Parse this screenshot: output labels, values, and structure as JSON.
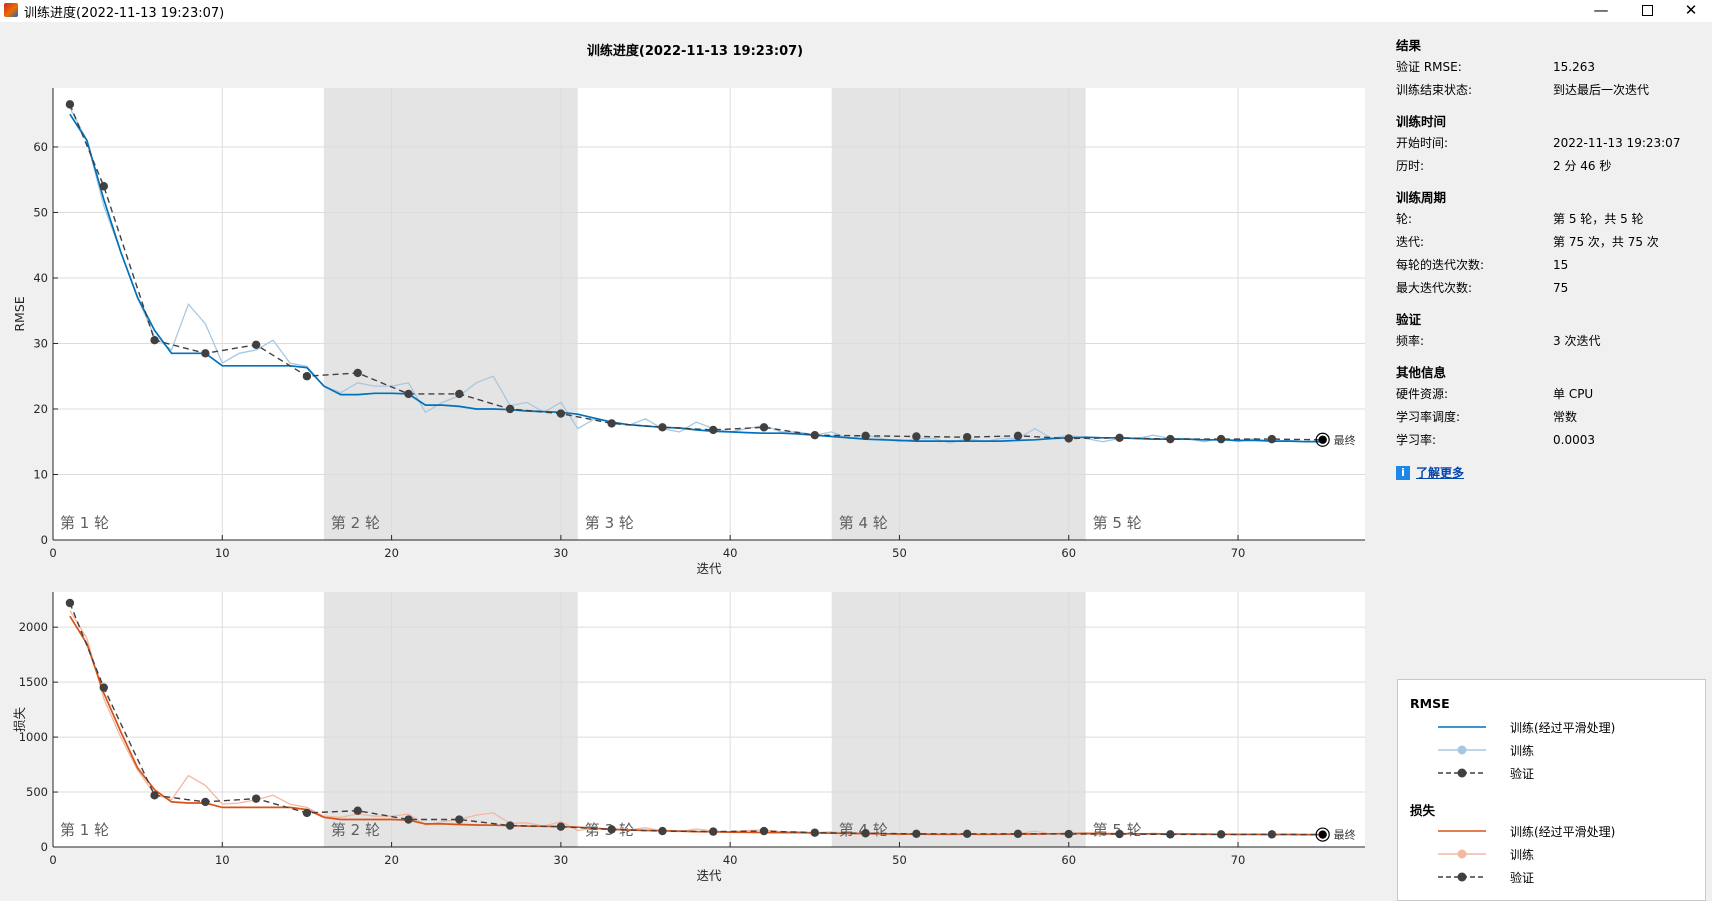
{
  "window": {
    "title": "训练进度(2022-11-13 19:23:07)",
    "minimize": "—",
    "close": "✕"
  },
  "plot_title": "训练进度(2022-11-13 19:23:07)",
  "info": {
    "sections": [
      {
        "title": "结果",
        "rows": [
          {
            "k": "验证 RMSE:",
            "v": "15.263"
          },
          {
            "k": "训练结束状态:",
            "v": "到达最后一次迭代"
          }
        ]
      },
      {
        "title": "训练时间",
        "rows": [
          {
            "k": "开始时间:",
            "v": "2022-11-13 19:23:07"
          },
          {
            "k": "历时:",
            "v": "2 分 46 秒"
          }
        ]
      },
      {
        "title": "训练周期",
        "rows": [
          {
            "k": "轮:",
            "v": "第 5 轮，共 5 轮"
          },
          {
            "k": "迭代:",
            "v": "第 75 次，共 75 次"
          },
          {
            "k": "每轮的迭代次数:",
            "v": "15"
          },
          {
            "k": "最大迭代次数:",
            "v": "75"
          }
        ]
      },
      {
        "title": "验证",
        "rows": [
          {
            "k": "频率:",
            "v": "3 次迭代"
          }
        ]
      },
      {
        "title": "其他信息",
        "rows": [
          {
            "k": "硬件资源:",
            "v": "单 CPU"
          },
          {
            "k": "学习率调度:",
            "v": "常数"
          },
          {
            "k": "学习率:",
            "v": "0.0003"
          }
        ]
      }
    ],
    "learn_more": "了解更多"
  },
  "legend": {
    "rmse_title": "RMSE",
    "loss_title": "损失",
    "smoothed": "训练(经过平滑处理)",
    "training": "训练",
    "validation": "验证"
  },
  "colors": {
    "rmse_smoothed": "#0072bd",
    "rmse_raw": "#a8c8e0",
    "loss_smoothed": "#d95319",
    "loss_raw": "#f2b8a0",
    "validation": "#404040",
    "epoch_shade": "#e4e4e4",
    "grid": "#dcdcdc"
  },
  "chart_data": [
    {
      "type": "line",
      "title": "训练进度(2022-11-13 19:23:07)",
      "xlabel": "迭代",
      "ylabel": "RMSE",
      "xlim": [
        0,
        77.5
      ],
      "ylim": [
        0,
        69
      ],
      "xticks": [
        0,
        10,
        20,
        30,
        40,
        50,
        60,
        70
      ],
      "yticks": [
        0,
        10,
        20,
        30,
        40,
        50,
        60
      ],
      "epochs": [
        {
          "label": "第 1 轮",
          "start": 0,
          "end": 16,
          "shaded": false
        },
        {
          "label": "第 2 轮",
          "start": 16,
          "end": 31,
          "shaded": true
        },
        {
          "label": "第 3 轮",
          "start": 31,
          "end": 46,
          "shaded": false
        },
        {
          "label": "第 4 轮",
          "start": 46,
          "end": 61,
          "shaded": true
        },
        {
          "label": "第 5 轮",
          "start": 61,
          "end": 77.5,
          "shaded": false
        }
      ],
      "final_label": "最终",
      "series": [
        {
          "name": "训练(经过平滑处理)",
          "style": "smoothed",
          "x": [
            1,
            2,
            3,
            4,
            5,
            6,
            7,
            8,
            9,
            10,
            11,
            12,
            13,
            14,
            15,
            16,
            17,
            18,
            19,
            20,
            21,
            22,
            23,
            24,
            25,
            26,
            27,
            28,
            29,
            30,
            31,
            32,
            33,
            34,
            35,
            36,
            37,
            38,
            39,
            40,
            41,
            42,
            43,
            44,
            45,
            46,
            47,
            48,
            49,
            50,
            51,
            52,
            53,
            54,
            55,
            56,
            57,
            58,
            59,
            60,
            61,
            62,
            63,
            64,
            65,
            66,
            67,
            68,
            69,
            70,
            71,
            72,
            73,
            74,
            75
          ],
          "y": [
            65,
            61,
            52,
            44,
            37,
            32,
            28.5,
            28.5,
            28.5,
            26.6,
            26.6,
            26.6,
            26.6,
            26.6,
            26.3,
            23.5,
            22.2,
            22.2,
            22.4,
            22.4,
            22.3,
            20.6,
            20.6,
            20.4,
            20.0,
            20.0,
            19.9,
            19.7,
            19.6,
            19.5,
            19.2,
            18.6,
            18.0,
            17.6,
            17.4,
            17.2,
            17.1,
            16.8,
            16.6,
            16.5,
            16.4,
            16.3,
            16.3,
            16.2,
            16.0,
            15.8,
            15.6,
            15.4,
            15.3,
            15.2,
            15.1,
            15.1,
            15.1,
            15.1,
            15.1,
            15.1,
            15.2,
            15.3,
            15.5,
            15.6,
            15.7,
            15.6,
            15.6,
            15.5,
            15.4,
            15.4,
            15.4,
            15.3,
            15.3,
            15.2,
            15.2,
            15.1,
            15.1,
            15.0,
            15.0
          ]
        },
        {
          "name": "训练",
          "style": "raw",
          "x": [
            1,
            2,
            3,
            4,
            5,
            6,
            7,
            8,
            9,
            10,
            11,
            12,
            13,
            14,
            15,
            16,
            17,
            18,
            19,
            20,
            21,
            22,
            23,
            24,
            25,
            26,
            27,
            28,
            29,
            30,
            31,
            32,
            33,
            34,
            35,
            36,
            37,
            38,
            39,
            40,
            41,
            42,
            43,
            44,
            45,
            46,
            47,
            48,
            49,
            50,
            51,
            52,
            53,
            54,
            55,
            56,
            57,
            58,
            59,
            60,
            61,
            62,
            63,
            64,
            65,
            66,
            67,
            68,
            69,
            70,
            71,
            72,
            73,
            74,
            75
          ],
          "y": [
            66,
            61,
            51,
            44,
            37,
            31,
            29,
            36,
            33,
            27,
            28.5,
            29,
            30.5,
            27,
            26.5,
            23.5,
            22.5,
            24,
            23.5,
            23.5,
            24,
            19.5,
            21,
            22,
            24,
            25,
            20.5,
            21,
            19.5,
            21,
            17,
            18.5,
            18,
            17.5,
            18.5,
            17,
            16.5,
            18,
            17,
            16.5,
            17,
            17.5,
            16.5,
            16.5,
            16,
            16.5,
            15.5,
            16,
            15.5,
            15,
            15.5,
            15.5,
            14.8,
            15.5,
            15,
            15.5,
            15.5,
            17,
            15.5,
            16,
            15.5,
            15,
            15.5,
            15.5,
            16,
            15.5,
            15.5,
            15,
            15.5,
            15,
            15.5,
            15,
            15.2,
            15,
            15.2
          ]
        },
        {
          "name": "验证",
          "style": "validation",
          "x": [
            1,
            3,
            6,
            9,
            12,
            15,
            18,
            21,
            24,
            27,
            30,
            33,
            36,
            39,
            42,
            45,
            48,
            51,
            54,
            57,
            60,
            63,
            66,
            69,
            72,
            75
          ],
          "y": [
            66.5,
            54,
            30.5,
            28.5,
            29.8,
            25,
            25.5,
            22.3,
            22.3,
            20,
            19.3,
            17.8,
            17.2,
            16.8,
            17.2,
            16.0,
            15.9,
            15.8,
            15.7,
            15.9,
            15.5,
            15.6,
            15.4,
            15.4,
            15.4,
            15.3
          ]
        }
      ]
    },
    {
      "type": "line",
      "xlabel": "迭代",
      "ylabel": "损失",
      "xlim": [
        0,
        77.5
      ],
      "ylim": [
        0,
        2320
      ],
      "xticks": [
        0,
        10,
        20,
        30,
        40,
        50,
        60,
        70
      ],
      "yticks": [
        0,
        500,
        1000,
        1500,
        2000
      ],
      "epochs": [
        {
          "label": "第 1 轮",
          "start": 0,
          "end": 16,
          "shaded": false
        },
        {
          "label": "第 2 轮",
          "start": 16,
          "end": 31,
          "shaded": true
        },
        {
          "label": "第 3 轮",
          "start": 31,
          "end": 46,
          "shaded": false
        },
        {
          "label": "第 4 轮",
          "start": 46,
          "end": 61,
          "shaded": true
        },
        {
          "label": "第 5 轮",
          "start": 61,
          "end": 77.5,
          "shaded": false
        }
      ],
      "final_label": "最终",
      "series": [
        {
          "name": "训练(经过平滑处理)",
          "style": "smoothed",
          "x": [
            1,
            2,
            3,
            4,
            5,
            6,
            7,
            8,
            9,
            10,
            11,
            12,
            13,
            14,
            15,
            16,
            17,
            18,
            19,
            20,
            21,
            22,
            23,
            24,
            25,
            26,
            27,
            28,
            29,
            30,
            31,
            32,
            33,
            34,
            35,
            36,
            37,
            38,
            39,
            40,
            41,
            42,
            43,
            44,
            45,
            46,
            47,
            48,
            49,
            50,
            51,
            52,
            53,
            54,
            55,
            56,
            57,
            58,
            59,
            60,
            61,
            62,
            63,
            64,
            65,
            66,
            67,
            68,
            69,
            70,
            71,
            72,
            73,
            74,
            75
          ],
          "y": [
            2100,
            1850,
            1400,
            1050,
            720,
            520,
            410,
            400,
            400,
            360,
            360,
            360,
            360,
            360,
            340,
            270,
            250,
            250,
            250,
            250,
            245,
            210,
            210,
            205,
            200,
            198,
            195,
            190,
            188,
            185,
            180,
            170,
            160,
            155,
            150,
            148,
            145,
            140,
            138,
            136,
            134,
            132,
            131,
            130,
            128,
            126,
            124,
            122,
            120,
            118,
            117,
            116,
            116,
            116,
            116,
            116,
            117,
            118,
            120,
            122,
            124,
            122,
            121,
            120,
            119,
            118,
            118,
            117,
            116,
            115,
            115,
            114,
            114,
            113,
            113
          ]
        },
        {
          "name": "训练",
          "style": "raw",
          "x": [
            1,
            2,
            3,
            4,
            5,
            6,
            7,
            8,
            9,
            10,
            11,
            12,
            13,
            14,
            15,
            16,
            17,
            18,
            19,
            20,
            21,
            22,
            23,
            24,
            25,
            26,
            27,
            28,
            29,
            30,
            31,
            32,
            33,
            34,
            35,
            36,
            37,
            38,
            39,
            40,
            41,
            42,
            43,
            44,
            45,
            46,
            47,
            48,
            49,
            50,
            51,
            52,
            53,
            54,
            55,
            56,
            57,
            58,
            59,
            60,
            61,
            62,
            63,
            64,
            65,
            66,
            67,
            68,
            69,
            70,
            71,
            72,
            73,
            74,
            75
          ],
          "y": [
            2150,
            1900,
            1350,
            1000,
            700,
            480,
            430,
            650,
            560,
            390,
            400,
            430,
            470,
            390,
            360,
            280,
            270,
            300,
            280,
            280,
            300,
            200,
            230,
            250,
            290,
            310,
            215,
            220,
            190,
            230,
            150,
            170,
            165,
            155,
            175,
            145,
            140,
            165,
            145,
            140,
            150,
            155,
            140,
            140,
            130,
            138,
            120,
            128,
            120,
            112,
            120,
            120,
            110,
            118,
            112,
            118,
            120,
            145,
            118,
            125,
            118,
            110,
            118,
            118,
            125,
            118,
            118,
            112,
            118,
            112,
            118,
            112,
            115,
            112,
            115
          ]
        },
        {
          "name": "验证",
          "style": "validation",
          "x": [
            1,
            3,
            6,
            9,
            12,
            15,
            18,
            21,
            24,
            27,
            30,
            33,
            36,
            39,
            42,
            45,
            48,
            51,
            54,
            57,
            60,
            63,
            66,
            69,
            72,
            75
          ],
          "y": [
            2220,
            1450,
            470,
            410,
            440,
            310,
            330,
            250,
            250,
            195,
            185,
            160,
            145,
            140,
            145,
            130,
            125,
            120,
            120,
            120,
            118,
            118,
            115,
            115,
            115,
            113
          ]
        }
      ]
    }
  ]
}
